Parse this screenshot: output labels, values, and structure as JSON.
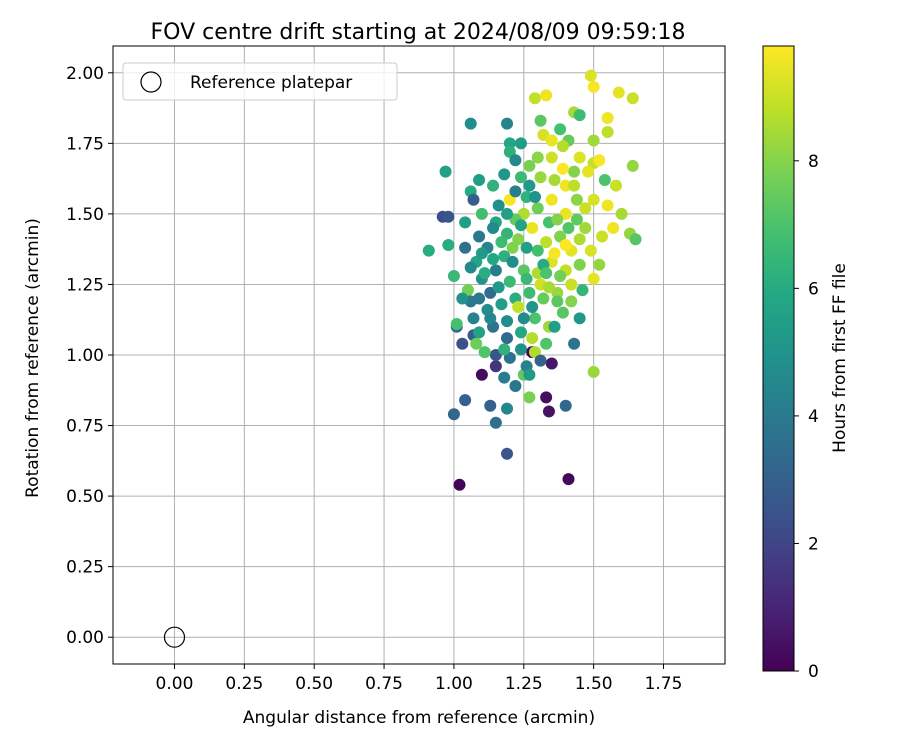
{
  "chart_data": {
    "type": "scatter",
    "title": "FOV centre drift starting at 2024/08/09 09:59:18",
    "xlabel": "Angular distance from reference (arcmin)",
    "ylabel": "Rotation from reference (arcmin)",
    "xlim": [
      -0.22,
      1.97
    ],
    "ylim": [
      -0.095,
      2.095
    ],
    "xticks": [
      0.0,
      0.25,
      0.5,
      0.75,
      1.0,
      1.25,
      1.5,
      1.75
    ],
    "xtick_labels": [
      "0.00",
      "0.25",
      "0.50",
      "0.75",
      "1.00",
      "1.25",
      "1.50",
      "1.75"
    ],
    "yticks": [
      0.0,
      0.25,
      0.5,
      0.75,
      1.0,
      1.25,
      1.5,
      1.75,
      2.0
    ],
    "ytick_labels": [
      "0.00",
      "0.25",
      "0.50",
      "0.75",
      "1.00",
      "1.25",
      "1.50",
      "1.75",
      "2.00"
    ],
    "grid": true,
    "legend": {
      "placement": "top-left",
      "entries": [
        "Reference platepar"
      ]
    },
    "reference_point": {
      "x": 0.0,
      "y": 0.0,
      "label": "Reference platepar"
    },
    "colorbar": {
      "label": "Hours from first FF file",
      "colormap": "viridis",
      "range": [
        0,
        9.8
      ],
      "ticks": [
        0,
        2,
        4,
        6,
        8
      ],
      "tick_labels": [
        "0",
        "2",
        "4",
        "6",
        "8"
      ]
    },
    "points": [
      [
        1.02,
        0.54,
        0.1
      ],
      [
        1.41,
        0.56,
        0.2
      ],
      [
        1.19,
        0.65,
        2.6
      ],
      [
        1.34,
        0.8,
        0.5
      ],
      [
        1.33,
        0.85,
        0.4
      ],
      [
        1.0,
        0.79,
        3.2
      ],
      [
        1.15,
        0.76,
        3.6
      ],
      [
        1.13,
        0.82,
        3.0
      ],
      [
        1.19,
        0.81,
        4.5
      ],
      [
        1.4,
        0.82,
        3.3
      ],
      [
        1.04,
        0.84,
        3.0
      ],
      [
        1.1,
        0.93,
        0.3
      ],
      [
        1.15,
        0.96,
        1.5
      ],
      [
        1.28,
        1.01,
        0.1
      ],
      [
        1.35,
        0.97,
        0.6
      ],
      [
        1.03,
        1.04,
        2.4
      ],
      [
        1.07,
        1.07,
        2.8
      ],
      [
        1.01,
        1.1,
        3.5
      ],
      [
        1.43,
        1.04,
        3.8
      ],
      [
        1.5,
        0.94,
        8.3
      ],
      [
        1.27,
        0.85,
        7.8
      ],
      [
        1.25,
        0.93,
        7.4
      ],
      [
        1.29,
        1.01,
        8.6
      ],
      [
        1.33,
        1.04,
        7.1
      ],
      [
        1.45,
        1.13,
        5.2
      ],
      [
        0.96,
        1.49,
        2.3
      ],
      [
        0.98,
        1.49,
        2.6
      ],
      [
        0.91,
        1.37,
        6.0
      ],
      [
        0.97,
        1.65,
        5.6
      ],
      [
        0.98,
        1.39,
        6.1
      ],
      [
        1.06,
        1.82,
        4.8
      ],
      [
        1.19,
        1.82,
        4.4
      ],
      [
        1.29,
        1.91,
        8.9
      ],
      [
        1.33,
        1.92,
        9.6
      ],
      [
        1.49,
        1.99,
        9.3
      ],
      [
        1.5,
        1.95,
        9.7
      ],
      [
        1.59,
        1.93,
        9.4
      ],
      [
        1.64,
        1.91,
        9.0
      ],
      [
        1.43,
        1.86,
        8.5
      ],
      [
        1.45,
        1.85,
        6.7
      ],
      [
        1.55,
        1.84,
        9.6
      ],
      [
        1.55,
        1.79,
        8.8
      ],
      [
        1.5,
        1.76,
        8.4
      ],
      [
        1.41,
        1.76,
        7.5
      ],
      [
        1.38,
        1.8,
        6.9
      ],
      [
        1.31,
        1.83,
        7.3
      ],
      [
        1.32,
        1.78,
        9.2
      ],
      [
        1.35,
        1.76,
        9.5
      ],
      [
        1.39,
        1.74,
        8.7
      ],
      [
        1.2,
        1.75,
        5.8
      ],
      [
        1.2,
        1.72,
        6.2
      ],
      [
        1.24,
        1.75,
        5.4
      ],
      [
        1.3,
        1.7,
        8.1
      ],
      [
        1.35,
        1.7,
        9.1
      ],
      [
        1.45,
        1.7,
        9.3
      ],
      [
        1.5,
        1.68,
        8.9
      ],
      [
        1.52,
        1.69,
        9.7
      ],
      [
        1.58,
        1.6,
        9.0
      ],
      [
        1.64,
        1.67,
        8.2
      ],
      [
        1.54,
        1.62,
        7.0
      ],
      [
        1.48,
        1.65,
        9.4
      ],
      [
        1.43,
        1.65,
        8.0
      ],
      [
        1.4,
        1.6,
        9.6
      ],
      [
        1.36,
        1.62,
        8.5
      ],
      [
        1.31,
        1.63,
        8.3
      ],
      [
        1.27,
        1.67,
        7.8
      ],
      [
        1.24,
        1.63,
        6.6
      ],
      [
        1.18,
        1.64,
        5.1
      ],
      [
        1.14,
        1.6,
        6.3
      ],
      [
        1.06,
        1.58,
        6.0
      ],
      [
        1.09,
        1.62,
        5.4
      ],
      [
        1.04,
        1.47,
        5.5
      ],
      [
        1.07,
        1.55,
        2.9
      ],
      [
        1.1,
        1.5,
        6.8
      ],
      [
        1.15,
        1.47,
        5.7
      ],
      [
        1.2,
        1.55,
        9.7
      ],
      [
        1.25,
        1.5,
        8.6
      ],
      [
        1.3,
        1.52,
        7.6
      ],
      [
        1.35,
        1.55,
        9.6
      ],
      [
        1.4,
        1.5,
        9.5
      ],
      [
        1.44,
        1.55,
        8.1
      ],
      [
        1.5,
        1.55,
        9.2
      ],
      [
        1.55,
        1.53,
        9.6
      ],
      [
        1.6,
        1.5,
        8.5
      ],
      [
        1.63,
        1.43,
        8.2
      ],
      [
        1.65,
        1.41,
        7.2
      ],
      [
        1.57,
        1.45,
        9.6
      ],
      [
        1.53,
        1.42,
        9.0
      ],
      [
        1.49,
        1.37,
        9.2
      ],
      [
        1.45,
        1.41,
        8.6
      ],
      [
        1.42,
        1.37,
        9.4
      ],
      [
        1.38,
        1.42,
        7.9
      ],
      [
        1.33,
        1.4,
        8.8
      ],
      [
        1.28,
        1.45,
        9.5
      ],
      [
        1.23,
        1.41,
        8.0
      ],
      [
        1.19,
        1.43,
        6.4
      ],
      [
        1.14,
        1.45,
        4.6
      ],
      [
        1.09,
        1.42,
        3.9
      ],
      [
        1.04,
        1.38,
        3.6
      ],
      [
        1.0,
        1.28,
        6.5
      ],
      [
        1.05,
        1.23,
        7.7
      ],
      [
        1.06,
        1.19,
        4.0
      ],
      [
        1.1,
        1.27,
        5.0
      ],
      [
        1.15,
        1.3,
        4.2
      ],
      [
        1.2,
        1.26,
        6.6
      ],
      [
        1.25,
        1.3,
        7.3
      ],
      [
        1.3,
        1.29,
        8.6
      ],
      [
        1.35,
        1.33,
        9.3
      ],
      [
        1.4,
        1.3,
        8.9
      ],
      [
        1.45,
        1.32,
        7.9
      ],
      [
        1.5,
        1.27,
        9.4
      ],
      [
        1.52,
        1.32,
        8.2
      ],
      [
        1.42,
        1.25,
        9.0
      ],
      [
        1.37,
        1.22,
        8.3
      ],
      [
        1.32,
        1.2,
        7.5
      ],
      [
        1.27,
        1.22,
        6.7
      ],
      [
        1.22,
        1.2,
        6.1
      ],
      [
        1.17,
        1.18,
        5.4
      ],
      [
        1.12,
        1.16,
        4.7
      ],
      [
        1.07,
        1.13,
        4.3
      ],
      [
        1.01,
        1.11,
        6.9
      ],
      [
        1.09,
        1.08,
        5.6
      ],
      [
        1.14,
        1.1,
        3.8
      ],
      [
        1.19,
        1.06,
        3.4
      ],
      [
        1.24,
        1.08,
        5.9
      ],
      [
        1.29,
        1.13,
        7.0
      ],
      [
        1.34,
        1.1,
        8.4
      ],
      [
        1.39,
        1.15,
        7.2
      ],
      [
        1.24,
        1.02,
        4.9
      ],
      [
        1.2,
        0.99,
        3.7
      ],
      [
        1.15,
        1.0,
        2.6
      ],
      [
        1.11,
        1.01,
        7.1
      ],
      [
        1.26,
        0.96,
        4.3
      ],
      [
        1.31,
        0.98,
        3.1
      ],
      [
        1.18,
        0.92,
        4.1
      ],
      [
        1.22,
        0.89,
        3.9
      ],
      [
        1.27,
        0.93,
        5.3
      ],
      [
        1.36,
        1.1,
        5.5
      ],
      [
        1.3,
        1.37,
        6.8
      ],
      [
        1.27,
        1.6,
        5.3
      ],
      [
        1.22,
        1.69,
        4.6
      ],
      [
        1.16,
        1.53,
        4.9
      ],
      [
        1.12,
        1.38,
        4.4
      ],
      [
        1.08,
        1.33,
        5.8
      ],
      [
        1.13,
        1.22,
        3.5
      ],
      [
        1.18,
        1.35,
        6.2
      ],
      [
        1.22,
        1.48,
        7.4
      ],
      [
        1.26,
        1.56,
        6.3
      ],
      [
        1.34,
        1.47,
        6.9
      ],
      [
        1.38,
        1.28,
        7.7
      ],
      [
        1.42,
        1.19,
        8.0
      ],
      [
        1.46,
        1.23,
        6.4
      ],
      [
        1.47,
        1.45,
        8.4
      ],
      [
        1.41,
        1.45,
        7.1
      ],
      [
        1.36,
        1.36,
        9.7
      ],
      [
        1.31,
        1.25,
        9.1
      ],
      [
        1.26,
        1.38,
        5.6
      ],
      [
        1.21,
        1.33,
        4.8
      ],
      [
        1.16,
        1.24,
        5.2
      ],
      [
        1.11,
        1.29,
        6.1
      ],
      [
        1.06,
        1.31,
        4.6
      ],
      [
        1.03,
        1.2,
        5.0
      ],
      [
        1.08,
        1.04,
        7.6
      ],
      [
        1.23,
        1.17,
        8.9
      ],
      [
        1.28,
        1.06,
        8.7
      ],
      [
        1.32,
        1.32,
        6.0
      ],
      [
        1.37,
        1.48,
        8.0
      ],
      [
        1.43,
        1.6,
        8.8
      ],
      [
        1.47,
        1.52,
        9.0
      ],
      [
        1.39,
        1.66,
        9.8
      ],
      [
        1.29,
        1.56,
        5.0
      ],
      [
        1.24,
        1.46,
        5.7
      ],
      [
        1.17,
        1.4,
        6.7
      ],
      [
        1.1,
        1.36,
        5.3
      ],
      [
        1.13,
        1.13,
        4.5
      ],
      [
        1.18,
        1.02,
        6.3
      ],
      [
        1.25,
        1.13,
        4.7
      ],
      [
        1.34,
        1.24,
        8.5
      ],
      [
        1.4,
        1.39,
        9.9
      ],
      [
        1.44,
        1.48,
        7.4
      ],
      [
        1.22,
        1.58,
        4.2
      ],
      [
        1.19,
        1.5,
        5.5
      ],
      [
        1.14,
        1.34,
        5.9
      ],
      [
        1.09,
        1.2,
        3.9
      ],
      [
        1.19,
        1.12,
        4.8
      ],
      [
        1.28,
        1.17,
        5.1
      ],
      [
        1.33,
        1.29,
        7.0
      ],
      [
        1.37,
        1.19,
        7.3
      ],
      [
        1.21,
        1.38,
        7.9
      ],
      [
        1.26,
        1.27,
        6.5
      ]
    ]
  }
}
